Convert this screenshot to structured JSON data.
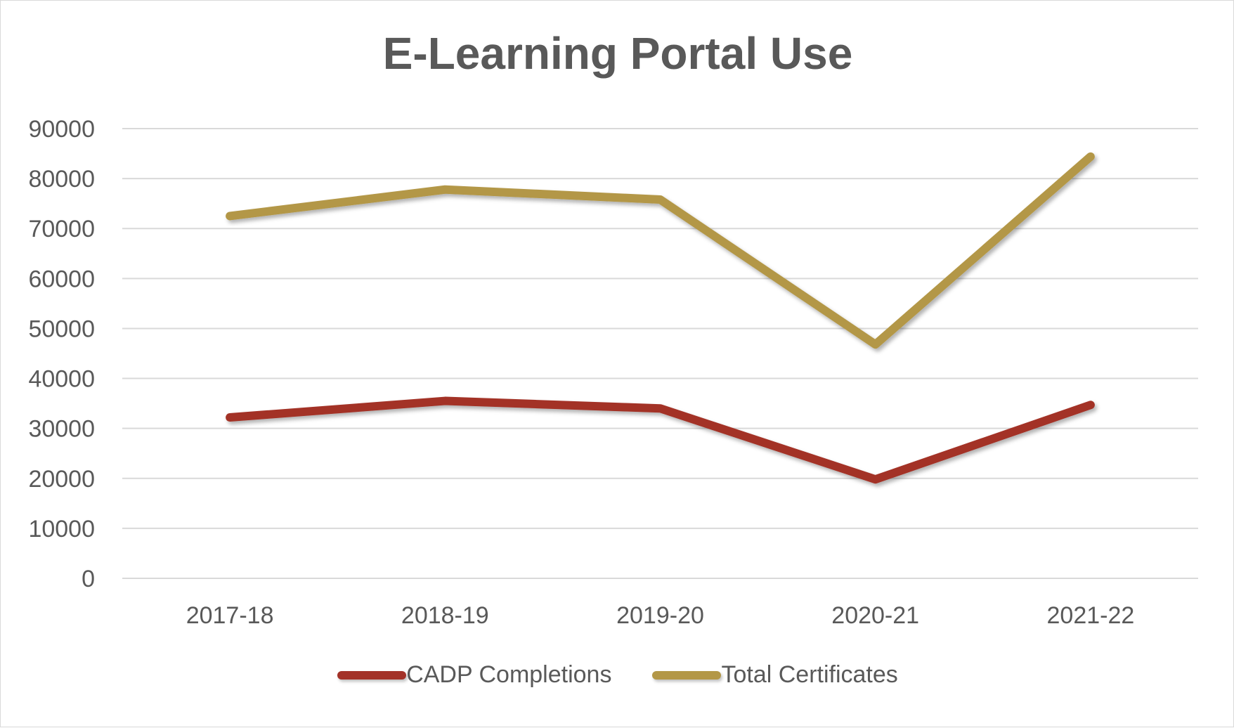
{
  "chart_data": {
    "type": "line",
    "title": "E-Learning Portal Use",
    "categories": [
      "2017-18",
      "2018-19",
      "2019-20",
      "2020-21",
      "2021-22"
    ],
    "ylim": [
      0,
      90000
    ],
    "yticks": [
      "0",
      "10000",
      "20000",
      "30000",
      "40000",
      "50000",
      "60000",
      "70000",
      "80000",
      "90000"
    ],
    "grid": true,
    "legend_position": "bottom",
    "series": [
      {
        "name": "CADP Completions",
        "color": "#a33228",
        "values": [
          32200,
          35500,
          34000,
          19800,
          34700
        ]
      },
      {
        "name": "Total Certificates",
        "color": "#b39747",
        "values": [
          72500,
          77800,
          75800,
          46800,
          84400
        ]
      }
    ]
  }
}
